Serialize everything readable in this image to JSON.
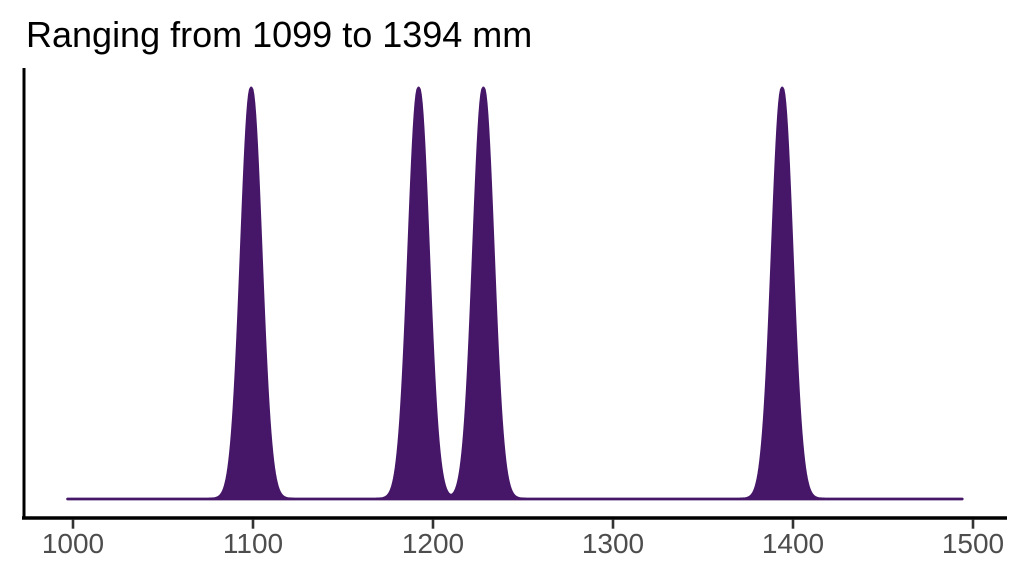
{
  "chart": {
    "title": "Ranging from 1099 to 1394 mm"
  },
  "chart_data": {
    "type": "area",
    "subtype": "density",
    "title": "Ranging from 1099 to 1394 mm",
    "xlabel": "",
    "ylabel": "",
    "x_ticks": [
      1000,
      1100,
      1200,
      1300,
      1400,
      1500
    ],
    "x_tick_labels": [
      "1000",
      "1100",
      "1200",
      "1300",
      "1400",
      "1500"
    ],
    "xlim": [
      972,
      1519
    ],
    "ylim": [
      0,
      1.05
    ],
    "grid": false,
    "legend": false,
    "peaks": [
      {
        "mean": 1099,
        "sd": 5.5,
        "height": 1.0
      },
      {
        "mean": 1192,
        "sd": 5.5,
        "height": 1.0
      },
      {
        "mean": 1228,
        "sd": 5.5,
        "height": 1.0
      },
      {
        "mean": 1394,
        "sd": 5.5,
        "height": 1.0
      }
    ],
    "curve_range": [
      997,
      1494
    ],
    "colors": {
      "fill": "#461769",
      "stroke": "#461769",
      "axis": "#000000",
      "tick": "#333333",
      "tick_label": "#4d4d4d",
      "title": "#000000",
      "background": "#ffffff"
    }
  }
}
